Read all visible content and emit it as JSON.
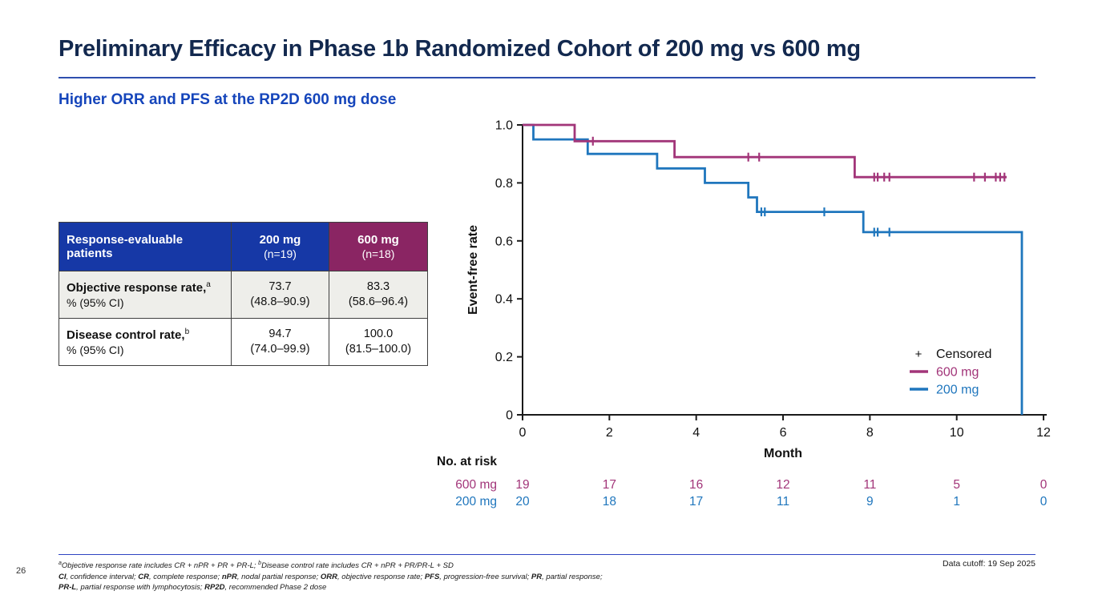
{
  "slide": {
    "title": "Preliminary Efficacy in Phase 1b Randomized Cohort of 200 mg vs 600 mg",
    "subtitle": "Higher ORR and PFS at the RP2D 600 mg dose",
    "page_number": "26",
    "data_cutoff": "Data cutoff: 19 Sep 2025"
  },
  "colors": {
    "title_navy": "#13294f",
    "subtitle_blue": "#1545bb",
    "table_header_blue": "#1638a6",
    "table_header_purple": "#8a2563",
    "series_600mg": "#a23579",
    "series_200mg": "#1f76bd",
    "rule_blue": "#2e4fae"
  },
  "table": {
    "header": [
      {
        "title": "Response-evaluable patients",
        "sub": ""
      },
      {
        "title": "200 mg",
        "sub": "(n=19)"
      },
      {
        "title": "600 mg",
        "sub": "(n=18)"
      }
    ],
    "rows": [
      {
        "label": [
          {
            "t": "Objective response rate,",
            "b": true
          },
          {
            "t": "a",
            "sup": true
          }
        ],
        "sub": "% (95% CI)",
        "values": [
          {
            "v": "73.7",
            "ci": "(48.8–90.9)"
          },
          {
            "v": "83.3",
            "ci": "(58.6–96.4)"
          }
        ]
      },
      {
        "label": [
          {
            "t": "Disease control rate,",
            "b": true
          },
          {
            "t": "b",
            "sup": true
          }
        ],
        "sub": "% (95% CI)",
        "values": [
          {
            "v": "94.7",
            "ci": "(74.0–99.9)"
          },
          {
            "v": "100.0",
            "ci": "(81.5–100.0)"
          }
        ]
      }
    ]
  },
  "chart_data": {
    "type": "line",
    "subtype": "kaplan-meier-step",
    "xlabel": "Month",
    "ylabel": "Event-free rate",
    "xlim": [
      0,
      12
    ],
    "ylim": [
      0,
      1.0
    ],
    "xticks": [
      0,
      2,
      4,
      6,
      8,
      10,
      12
    ],
    "yticks": [
      0,
      0.2,
      0.4,
      0.6,
      0.8,
      1.0
    ],
    "grid": false,
    "legend_position": "lower-right-inside",
    "series": [
      {
        "name": "600 mg",
        "color": "#a23579",
        "steps": [
          [
            0,
            1.0
          ],
          [
            1.2,
            1.0
          ],
          [
            1.2,
            0.944
          ],
          [
            3.5,
            0.944
          ],
          [
            3.5,
            0.889
          ],
          [
            7.65,
            0.889
          ],
          [
            7.65,
            0.82
          ],
          [
            11.15,
            0.82
          ]
        ],
        "censored": [
          [
            1.62,
            0.944
          ],
          [
            5.2,
            0.889
          ],
          [
            5.45,
            0.889
          ],
          [
            8.1,
            0.82
          ],
          [
            8.18,
            0.82
          ],
          [
            8.33,
            0.82
          ],
          [
            8.45,
            0.82
          ],
          [
            10.4,
            0.82
          ],
          [
            10.65,
            0.82
          ],
          [
            10.9,
            0.82
          ],
          [
            11.0,
            0.82
          ],
          [
            11.1,
            0.82
          ]
        ]
      },
      {
        "name": "200 mg",
        "color": "#1f76bd",
        "steps": [
          [
            0,
            1.0
          ],
          [
            0.25,
            1.0
          ],
          [
            0.25,
            0.95
          ],
          [
            1.5,
            0.95
          ],
          [
            1.5,
            0.9
          ],
          [
            3.1,
            0.9
          ],
          [
            3.1,
            0.85
          ],
          [
            4.2,
            0.85
          ],
          [
            4.2,
            0.8
          ],
          [
            5.2,
            0.8
          ],
          [
            5.2,
            0.75
          ],
          [
            5.4,
            0.75
          ],
          [
            5.4,
            0.7
          ],
          [
            7.85,
            0.7
          ],
          [
            7.85,
            0.63
          ],
          [
            11.5,
            0.63
          ],
          [
            11.5,
            0
          ]
        ],
        "censored": [
          [
            5.5,
            0.7
          ],
          [
            5.58,
            0.7
          ],
          [
            6.95,
            0.7
          ],
          [
            8.1,
            0.63
          ],
          [
            8.18,
            0.63
          ],
          [
            8.45,
            0.63
          ]
        ]
      }
    ],
    "legend": {
      "censored_symbol": "+",
      "censored_label": "Censored",
      "items": [
        {
          "label": "600 mg",
          "color": "#a23579"
        },
        {
          "label": "200 mg",
          "color": "#1f76bd"
        }
      ]
    },
    "no_at_risk": {
      "title": "No. at risk",
      "months": [
        0,
        2,
        4,
        6,
        8,
        10,
        12
      ],
      "rows": [
        {
          "label": "600 mg",
          "color": "#a23579",
          "values": [
            19,
            17,
            16,
            12,
            11,
            5,
            0
          ]
        },
        {
          "label": "200 mg",
          "color": "#1f76bd",
          "values": [
            20,
            18,
            17,
            11,
            9,
            1,
            0
          ]
        }
      ]
    }
  },
  "footnotes": {
    "line1": [
      {
        "t": "a",
        "sup": true
      },
      {
        "t": "Objective response rate includes CR + nPR + PR + PR-L; "
      },
      {
        "t": "b",
        "sup": true
      },
      {
        "t": "Disease control rate includes CR + nPR + PR/PR-L + SD"
      }
    ],
    "line2": [
      {
        "t": "CI",
        "b": true
      },
      {
        "t": ", confidence interval; "
      },
      {
        "t": "CR",
        "b": true
      },
      {
        "t": ", complete response; "
      },
      {
        "t": "nPR",
        "b": true
      },
      {
        "t": ", nodal partial response; "
      },
      {
        "t": "ORR",
        "b": true
      },
      {
        "t": ", objective response rate; "
      },
      {
        "t": "PFS",
        "b": true
      },
      {
        "t": ", progression-free survival; "
      },
      {
        "t": "PR",
        "b": true
      },
      {
        "t": ", partial response;"
      }
    ],
    "line3": [
      {
        "t": "PR-L",
        "b": true
      },
      {
        "t": ", partial response with lymphocytosis; "
      },
      {
        "t": "RP2D",
        "b": true
      },
      {
        "t": ", recommended Phase 2 dose"
      }
    ]
  }
}
